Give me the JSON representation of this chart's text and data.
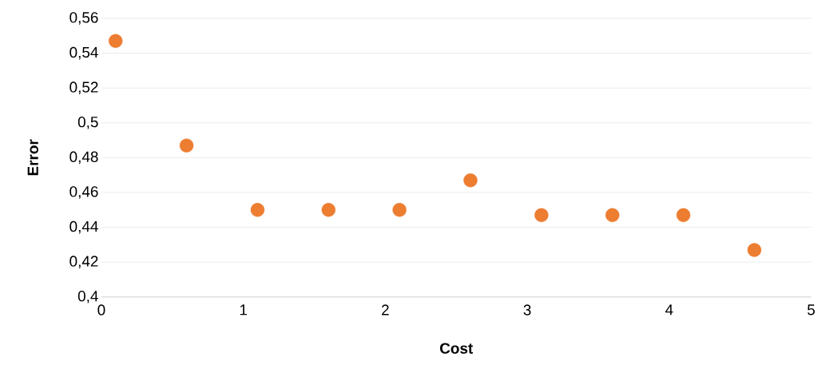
{
  "chart_data": {
    "type": "scatter",
    "xlabel": "Cost",
    "ylabel": "Error",
    "x": [
      0.1,
      0.6,
      1.1,
      1.6,
      2.1,
      2.6,
      3.1,
      3.6,
      4.1,
      4.6
    ],
    "series": [
      {
        "color": "#ed7d31",
        "values": [
          0.547,
          0.487,
          0.45,
          0.45,
          0.45,
          0.467,
          0.447,
          0.447,
          0.447,
          0.427
        ]
      }
    ],
    "xlim": [
      0,
      5
    ],
    "xticks": [
      0,
      1,
      2,
      3,
      4,
      5
    ],
    "ylim": [
      0.4,
      0.56
    ],
    "yticks": [
      {
        "value": 0.4,
        "label": "0,4"
      },
      {
        "value": 0.42,
        "label": "0,42"
      },
      {
        "value": 0.44,
        "label": "0,44"
      },
      {
        "value": 0.46,
        "label": "0,46"
      },
      {
        "value": 0.48,
        "label": "0,48"
      },
      {
        "value": 0.5,
        "label": "0,5"
      },
      {
        "value": 0.52,
        "label": "0,52"
      },
      {
        "value": 0.54,
        "label": "0,54"
      },
      {
        "value": 0.56,
        "label": "0,56"
      }
    ],
    "grid": "y",
    "marker": "circle"
  }
}
